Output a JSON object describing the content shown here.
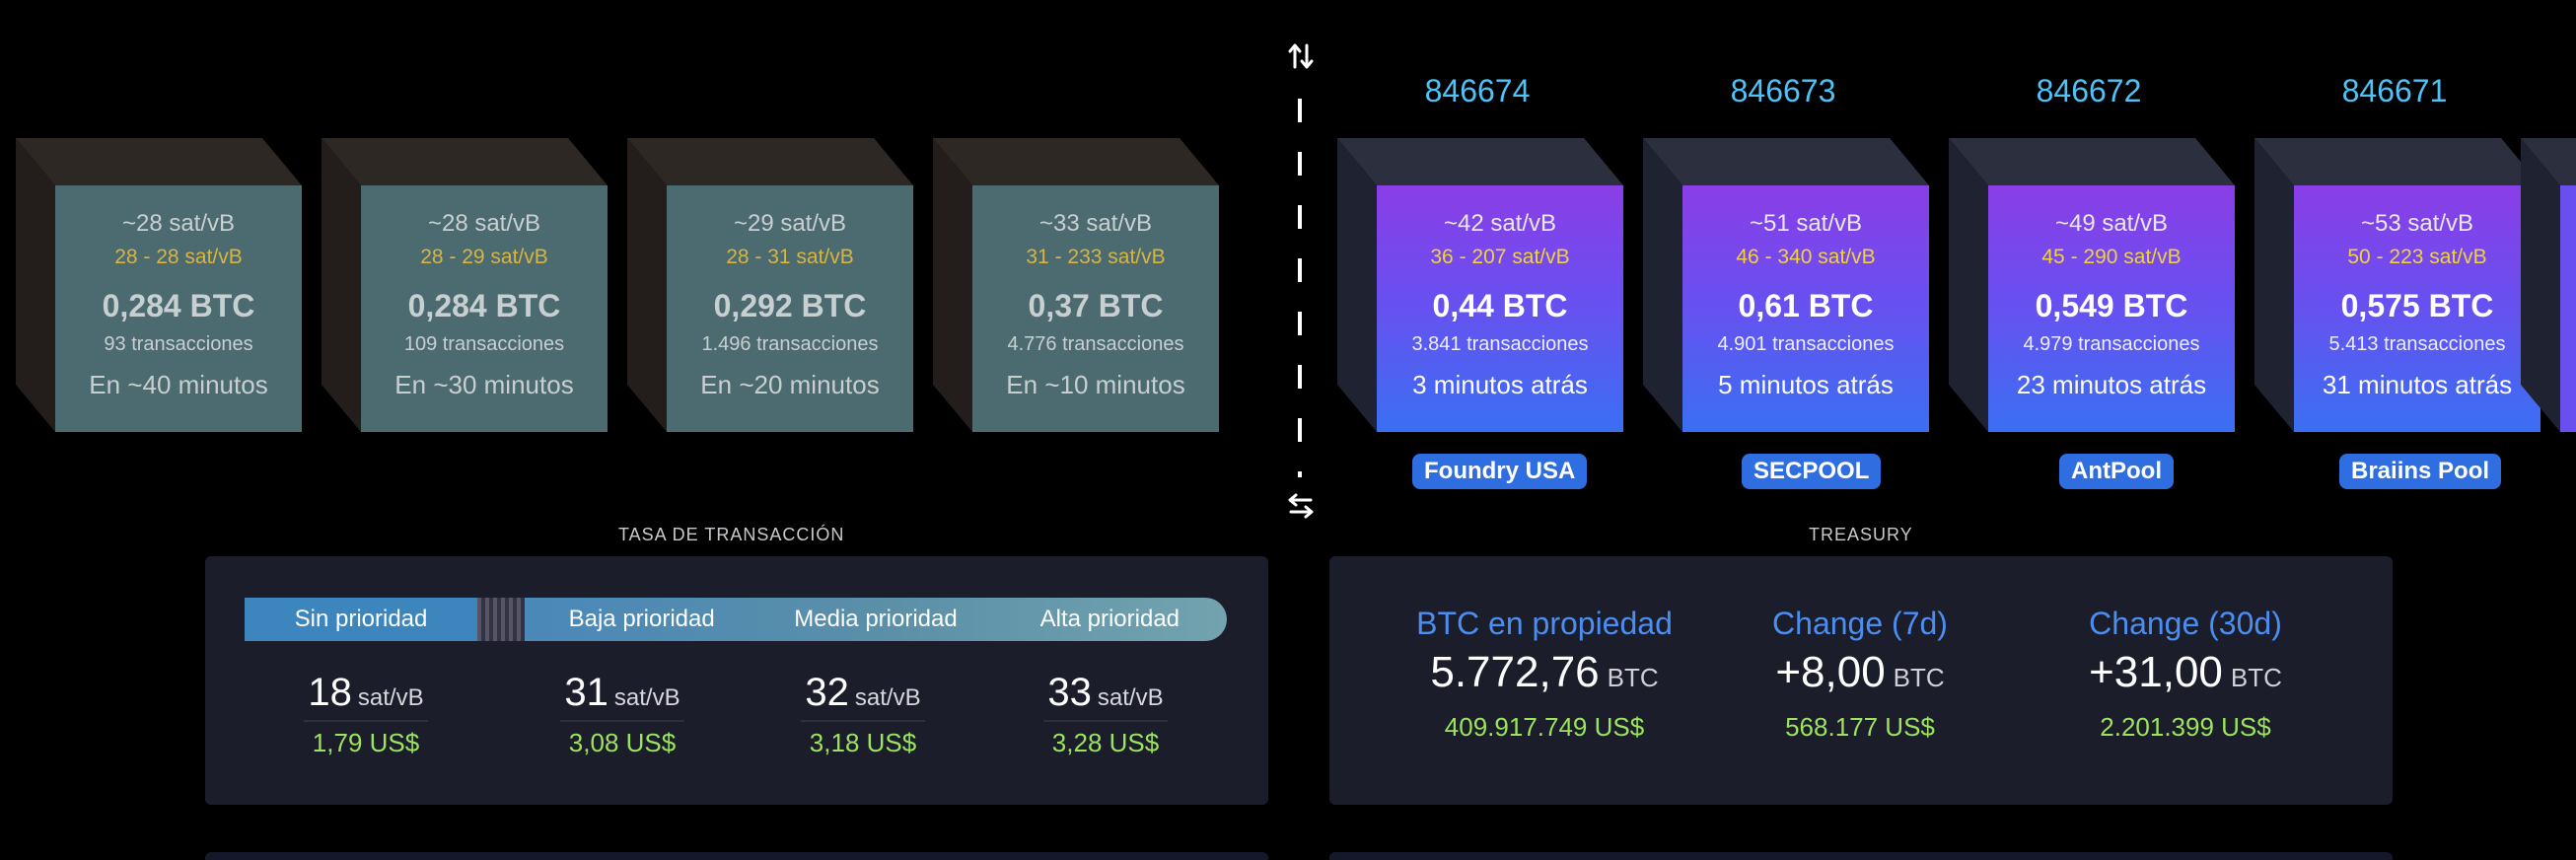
{
  "projected_blocks": [
    {
      "median": "~28 sat/vB",
      "range": "28 - 28 sat/vB",
      "size": "0,284 BTC",
      "tx": "93 transacciones",
      "eta": "En ~40 minutos"
    },
    {
      "median": "~28 sat/vB",
      "range": "28 - 29 sat/vB",
      "size": "0,284 BTC",
      "tx": "109 transacciones",
      "eta": "En ~30 minutos"
    },
    {
      "median": "~29 sat/vB",
      "range": "28 - 31 sat/vB",
      "size": "0,292 BTC",
      "tx": "1.496 transacciones",
      "eta": "En ~20 minutos"
    },
    {
      "median": "~33 sat/vB",
      "range": "31 - 233 sat/vB",
      "size": "0,37 BTC",
      "tx": "4.776 transacciones",
      "eta": "En ~10 minutos"
    }
  ],
  "mined_blocks": [
    {
      "height": "846674",
      "median": "~42 sat/vB",
      "range": "36 - 207 sat/vB",
      "size": "0,44 BTC",
      "tx": "3.841 transacciones",
      "eta": "3 minutos atrás",
      "pool": "Foundry USA"
    },
    {
      "height": "846673",
      "median": "~51 sat/vB",
      "range": "46 - 340 sat/vB",
      "size": "0,61 BTC",
      "tx": "4.901 transacciones",
      "eta": "5 minutos atrás",
      "pool": "SECPOOL"
    },
    {
      "height": "846672",
      "median": "~49 sat/vB",
      "range": "45 - 290 sat/vB",
      "size": "0,549 BTC",
      "tx": "4.979 transacciones",
      "eta": "23 minutos atrás",
      "pool": "AntPool"
    },
    {
      "height": "846671",
      "median": "~53 sat/vB",
      "range": "50 - 223 sat/vB",
      "size": "0,575 BTC",
      "tx": "5.413 transacciones",
      "eta": "31 minutos atrás",
      "pool": "Braiins Pool"
    }
  ],
  "icons": {
    "top": "swap-vertical-icon",
    "bottom": "swap-horizontal-icon"
  },
  "fees": {
    "title": "TASA DE TRANSACCIÓN",
    "tiers": [
      "Sin prioridad",
      "Baja prioridad",
      "Media prioridad",
      "Alta prioridad"
    ],
    "values": [
      {
        "rate": "18",
        "unit": "sat/vB",
        "usd": "1,79 US$"
      },
      {
        "rate": "31",
        "unit": "sat/vB",
        "usd": "3,08 US$"
      },
      {
        "rate": "32",
        "unit": "sat/vB",
        "usd": "3,18 US$"
      },
      {
        "rate": "33",
        "unit": "sat/vB",
        "usd": "3,28 US$"
      }
    ]
  },
  "treasury": {
    "title": "TREASURY",
    "cols": [
      {
        "label": "BTC en propiedad",
        "value": "5.772,76",
        "unit": "BTC",
        "usd": "409.917.749 US$"
      },
      {
        "label": "Change (7d)",
        "value": "+8,00",
        "unit": "BTC",
        "usd": "568.177 US$"
      },
      {
        "label": "Change (30d)",
        "value": "+31,00",
        "unit": "BTC",
        "usd": "2.201.399 US$"
      }
    ]
  },
  "colors": {
    "projected_face": "#4c6b70",
    "mined_gradient_top": "#8a3ee6",
    "mined_gradient_bottom": "#3a6ff2",
    "height_text": "#4fc3f7",
    "pool_badge": "#2f6ee0",
    "usd_green": "#9be45c",
    "treasury_label": "#4b8ef2",
    "panel_bg": "#1b1d2b"
  }
}
